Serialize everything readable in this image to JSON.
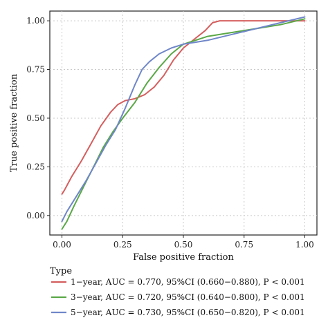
{
  "chart_data": {
    "type": "line",
    "xlabel": "False positive fraction",
    "ylabel": "True positive fraction",
    "xlim": [
      -0.05,
      1.05
    ],
    "ylim": [
      -0.1,
      1.05
    ],
    "x_ticks": [
      "0.00",
      "0.25",
      "0.50",
      "0.75",
      "1.00"
    ],
    "y_ticks": [
      "0.00",
      "0.25",
      "0.50",
      "0.75",
      "1.00"
    ],
    "grid": true,
    "legend_placement": "bottom",
    "legend_title": "Type",
    "series": [
      {
        "name": "1−year, AUC = 0.770, 95%CI (0.660−0.880), P < 0.001",
        "color": "#d55e5e",
        "points": [
          [
            0,
            0.11
          ],
          [
            0.01,
            0.13
          ],
          [
            0.04,
            0.2
          ],
          [
            0.08,
            0.28
          ],
          [
            0.12,
            0.37
          ],
          [
            0.16,
            0.46
          ],
          [
            0.2,
            0.53
          ],
          [
            0.23,
            0.57
          ],
          [
            0.26,
            0.59
          ],
          [
            0.3,
            0.6
          ],
          [
            0.34,
            0.62
          ],
          [
            0.38,
            0.66
          ],
          [
            0.42,
            0.72
          ],
          [
            0.46,
            0.8
          ],
          [
            0.5,
            0.86
          ],
          [
            0.55,
            0.91
          ],
          [
            0.59,
            0.95
          ],
          [
            0.62,
            0.99
          ],
          [
            0.65,
            1.0
          ],
          [
            0.75,
            1.0
          ],
          [
            0.9,
            1.0
          ],
          [
            1.0,
            1.0
          ]
        ]
      },
      {
        "name": "3−year, AUC = 0.720, 95%CI (0.640−0.800), P < 0.001",
        "color": "#5aa846",
        "points": [
          [
            0,
            -0.07
          ],
          [
            0.02,
            -0.03
          ],
          [
            0.05,
            0.05
          ],
          [
            0.09,
            0.15
          ],
          [
            0.13,
            0.25
          ],
          [
            0.17,
            0.35
          ],
          [
            0.21,
            0.43
          ],
          [
            0.25,
            0.5
          ],
          [
            0.3,
            0.58
          ],
          [
            0.35,
            0.68
          ],
          [
            0.4,
            0.76
          ],
          [
            0.45,
            0.83
          ],
          [
            0.5,
            0.88
          ],
          [
            0.55,
            0.9
          ],
          [
            0.6,
            0.92
          ],
          [
            0.7,
            0.94
          ],
          [
            0.8,
            0.96
          ],
          [
            0.9,
            0.98
          ],
          [
            1.0,
            1.01
          ]
        ]
      },
      {
        "name": "5−year, AUC = 0.730, 95%CI (0.650−0.820), P < 0.001",
        "color": "#6f86c9",
        "points": [
          [
            0,
            -0.03
          ],
          [
            0.02,
            0.02
          ],
          [
            0.06,
            0.1
          ],
          [
            0.1,
            0.18
          ],
          [
            0.14,
            0.27
          ],
          [
            0.18,
            0.36
          ],
          [
            0.22,
            0.44
          ],
          [
            0.26,
            0.55
          ],
          [
            0.3,
            0.67
          ],
          [
            0.33,
            0.75
          ],
          [
            0.36,
            0.79
          ],
          [
            0.4,
            0.83
          ],
          [
            0.45,
            0.86
          ],
          [
            0.5,
            0.88
          ],
          [
            0.55,
            0.89
          ],
          [
            0.6,
            0.9
          ],
          [
            0.7,
            0.93
          ],
          [
            0.8,
            0.96
          ],
          [
            0.9,
            0.99
          ],
          [
            1.0,
            1.02
          ]
        ]
      }
    ]
  }
}
